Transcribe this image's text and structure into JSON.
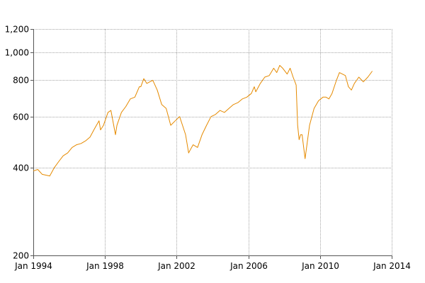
{
  "chart_data": {
    "type": "line",
    "title": "",
    "xlabel": "",
    "ylabel": "",
    "y_scale": "log",
    "ylim": [
      200,
      1200
    ],
    "xlim": [
      "1994-01",
      "2014-01"
    ],
    "grid": true,
    "legend": "none",
    "colors": {
      "series": "#e58a00",
      "grid": "#a6a6a6",
      "axis": "#555555"
    },
    "x_ticks": [
      {
        "value": 1994.0,
        "label": "Jan 1994"
      },
      {
        "value": 1998.0,
        "label": "Jan 1998"
      },
      {
        "value": 2002.0,
        "label": "Jan 2002"
      },
      {
        "value": 2006.0,
        "label": "Jan 2006"
      },
      {
        "value": 2010.0,
        "label": "Jan 2010"
      },
      {
        "value": 2014.0,
        "label": "Jan 2014"
      }
    ],
    "y_ticks": [
      {
        "value": 200,
        "label": "200"
      },
      {
        "value": 400,
        "label": "400"
      },
      {
        "value": 600,
        "label": "600"
      },
      {
        "value": 800,
        "label": "800"
      },
      {
        "value": 1000,
        "label": "1,000"
      },
      {
        "value": 1200,
        "label": "1,200"
      }
    ],
    "series": [
      {
        "x": [
          "1994-01",
          "1994-04",
          "1994-07",
          "1994-12",
          "1995-03",
          "1995-06",
          "1995-09",
          "1995-12",
          "1996-03",
          "1996-06",
          "1996-09",
          "1996-12",
          "1997-03",
          "1997-06",
          "1997-09",
          "1997-10",
          "1997-12",
          "1998-03",
          "1998-05",
          "1998-08",
          "1998-09",
          "1998-12",
          "1999-03",
          "1999-06",
          "1999-09",
          "1999-12",
          "2000-01",
          "2000-03",
          "2000-05",
          "2000-09",
          "2000-12",
          "2001-03",
          "2001-06",
          "2001-09",
          "2001-12",
          "2002-03",
          "2002-07",
          "2002-09",
          "2002-10",
          "2002-12",
          "2003-03",
          "2003-06",
          "2003-09",
          "2003-12",
          "2004-03",
          "2004-06",
          "2004-09",
          "2004-12",
          "2005-03",
          "2005-06",
          "2005-09",
          "2005-12",
          "2006-03",
          "2006-05",
          "2006-06",
          "2006-09",
          "2006-12",
          "2007-03",
          "2007-06",
          "2007-08",
          "2007-10",
          "2007-12",
          "2008-03",
          "2008-05",
          "2008-07",
          "2008-09",
          "2008-10",
          "2008-11",
          "2008-12",
          "2009-01",
          "2009-03",
          "2009-06",
          "2009-09",
          "2009-12",
          "2010-03",
          "2010-05",
          "2010-07",
          "2010-09",
          "2010-12",
          "2011-02",
          "2011-04",
          "2011-06",
          "2011-08",
          "2011-10",
          "2011-12",
          "2012-03",
          "2012-06",
          "2012-09",
          "2012-12"
        ],
        "y": [
          390,
          395,
          380,
          375,
          400,
          420,
          440,
          450,
          470,
          480,
          485,
          495,
          510,
          545,
          580,
          540,
          560,
          620,
          630,
          520,
          560,
          620,
          650,
          690,
          700,
          760,
          760,
          810,
          780,
          800,
          740,
          660,
          640,
          560,
          580,
          600,
          520,
          450,
          460,
          480,
          470,
          520,
          560,
          600,
          610,
          630,
          620,
          640,
          660,
          670,
          690,
          700,
          720,
          760,
          730,
          780,
          820,
          830,
          880,
          850,
          900,
          880,
          840,
          880,
          820,
          770,
          560,
          500,
          520,
          520,
          430,
          560,
          640,
          680,
          700,
          700,
          690,
          720,
          800,
          850,
          840,
          830,
          760,
          740,
          780,
          820,
          790,
          820,
          860
        ]
      }
    ]
  }
}
